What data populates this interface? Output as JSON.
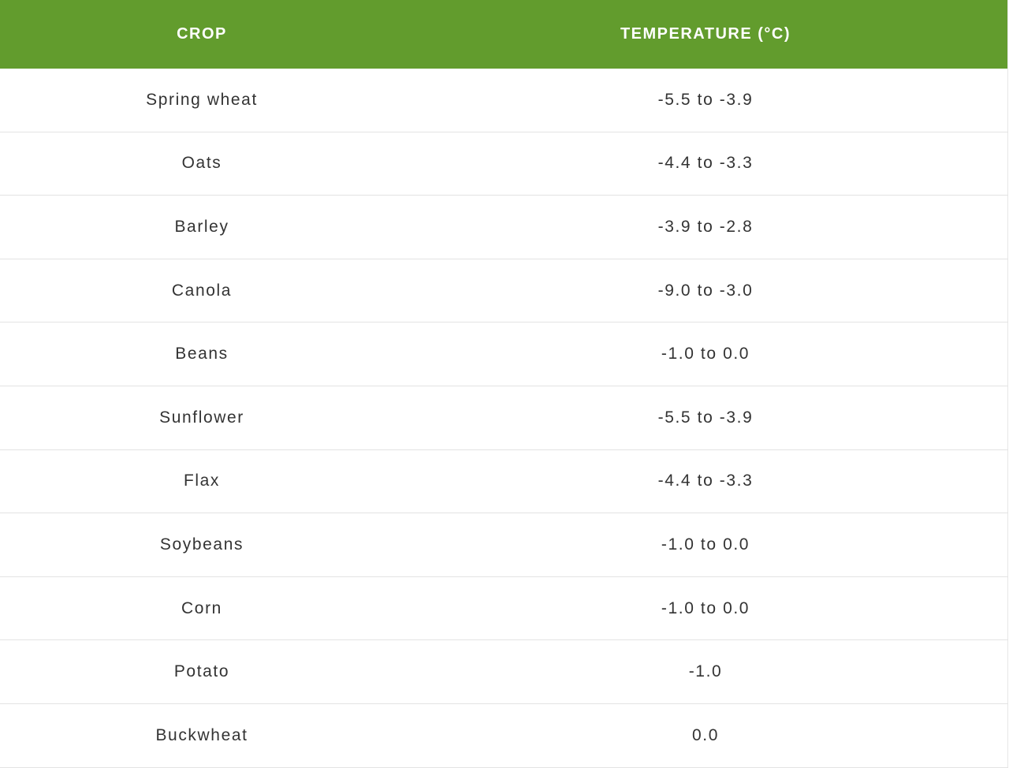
{
  "table": {
    "headers": [
      "CROP",
      "TEMPERATURE (°C)"
    ],
    "header_color": "#629c2d",
    "rows": [
      [
        "Spring wheat",
        "-5.5 to -3.9"
      ],
      [
        "Oats",
        "-4.4 to -3.3"
      ],
      [
        "Barley",
        "-3.9 to -2.8"
      ],
      [
        "Canola",
        "-9.0 to -3.0"
      ],
      [
        "Beans",
        "-1.0 to 0.0"
      ],
      [
        "Sunflower",
        "-5.5 to -3.9"
      ],
      [
        "Flax",
        "-4.4 to -3.3"
      ],
      [
        "Soybeans",
        "-1.0 to 0.0"
      ],
      [
        "Corn",
        "-1.0 to 0.0"
      ],
      [
        "Potato",
        "-1.0"
      ],
      [
        "Buckwheat",
        "0.0"
      ]
    ]
  }
}
